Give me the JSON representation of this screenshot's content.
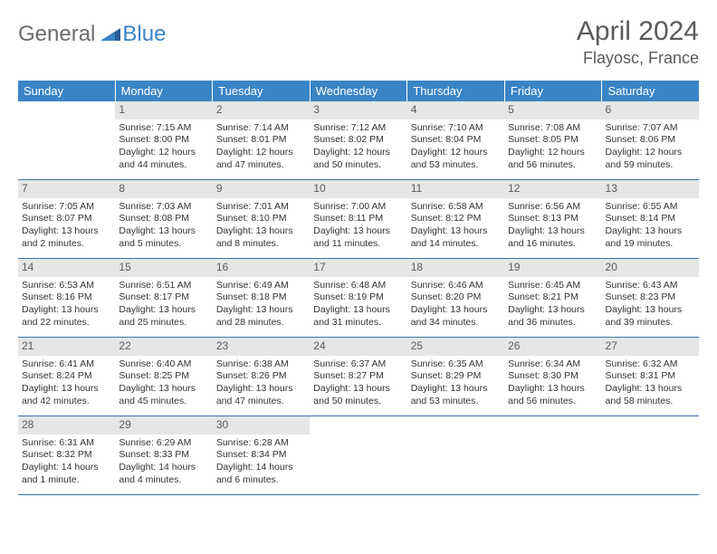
{
  "logo": {
    "general": "General",
    "blue": "Blue"
  },
  "title": "April 2024",
  "location": "Flayosc, France",
  "colors": {
    "header_bg": "#3a84c5",
    "header_text": "#ffffff",
    "daynum_bg": "#e6e6e6",
    "daynum_text": "#5a5a5a",
    "border": "#3a6fa5",
    "body_text": "#333333",
    "logo_gray": "#6c6c6c",
    "logo_blue": "#3a84c5"
  },
  "day_names": [
    "Sunday",
    "Monday",
    "Tuesday",
    "Wednesday",
    "Thursday",
    "Friday",
    "Saturday"
  ],
  "weeks": [
    [
      null,
      {
        "n": "1",
        "sunrise": "7:15 AM",
        "sunset": "8:00 PM",
        "day": "12 hours and 44 minutes."
      },
      {
        "n": "2",
        "sunrise": "7:14 AM",
        "sunset": "8:01 PM",
        "day": "12 hours and 47 minutes."
      },
      {
        "n": "3",
        "sunrise": "7:12 AM",
        "sunset": "8:02 PM",
        "day": "12 hours and 50 minutes."
      },
      {
        "n": "4",
        "sunrise": "7:10 AM",
        "sunset": "8:04 PM",
        "day": "12 hours and 53 minutes."
      },
      {
        "n": "5",
        "sunrise": "7:08 AM",
        "sunset": "8:05 PM",
        "day": "12 hours and 56 minutes."
      },
      {
        "n": "6",
        "sunrise": "7:07 AM",
        "sunset": "8:06 PM",
        "day": "12 hours and 59 minutes."
      }
    ],
    [
      {
        "n": "7",
        "sunrise": "7:05 AM",
        "sunset": "8:07 PM",
        "day": "13 hours and 2 minutes."
      },
      {
        "n": "8",
        "sunrise": "7:03 AM",
        "sunset": "8:08 PM",
        "day": "13 hours and 5 minutes."
      },
      {
        "n": "9",
        "sunrise": "7:01 AM",
        "sunset": "8:10 PM",
        "day": "13 hours and 8 minutes."
      },
      {
        "n": "10",
        "sunrise": "7:00 AM",
        "sunset": "8:11 PM",
        "day": "13 hours and 11 minutes."
      },
      {
        "n": "11",
        "sunrise": "6:58 AM",
        "sunset": "8:12 PM",
        "day": "13 hours and 14 minutes."
      },
      {
        "n": "12",
        "sunrise": "6:56 AM",
        "sunset": "8:13 PM",
        "day": "13 hours and 16 minutes."
      },
      {
        "n": "13",
        "sunrise": "6:55 AM",
        "sunset": "8:14 PM",
        "day": "13 hours and 19 minutes."
      }
    ],
    [
      {
        "n": "14",
        "sunrise": "6:53 AM",
        "sunset": "8:16 PM",
        "day": "13 hours and 22 minutes."
      },
      {
        "n": "15",
        "sunrise": "6:51 AM",
        "sunset": "8:17 PM",
        "day": "13 hours and 25 minutes."
      },
      {
        "n": "16",
        "sunrise": "6:49 AM",
        "sunset": "8:18 PM",
        "day": "13 hours and 28 minutes."
      },
      {
        "n": "17",
        "sunrise": "6:48 AM",
        "sunset": "8:19 PM",
        "day": "13 hours and 31 minutes."
      },
      {
        "n": "18",
        "sunrise": "6:46 AM",
        "sunset": "8:20 PM",
        "day": "13 hours and 34 minutes."
      },
      {
        "n": "19",
        "sunrise": "6:45 AM",
        "sunset": "8:21 PM",
        "day": "13 hours and 36 minutes."
      },
      {
        "n": "20",
        "sunrise": "6:43 AM",
        "sunset": "8:23 PM",
        "day": "13 hours and 39 minutes."
      }
    ],
    [
      {
        "n": "21",
        "sunrise": "6:41 AM",
        "sunset": "8:24 PM",
        "day": "13 hours and 42 minutes."
      },
      {
        "n": "22",
        "sunrise": "6:40 AM",
        "sunset": "8:25 PM",
        "day": "13 hours and 45 minutes."
      },
      {
        "n": "23",
        "sunrise": "6:38 AM",
        "sunset": "8:26 PM",
        "day": "13 hours and 47 minutes."
      },
      {
        "n": "24",
        "sunrise": "6:37 AM",
        "sunset": "8:27 PM",
        "day": "13 hours and 50 minutes."
      },
      {
        "n": "25",
        "sunrise": "6:35 AM",
        "sunset": "8:29 PM",
        "day": "13 hours and 53 minutes."
      },
      {
        "n": "26",
        "sunrise": "6:34 AM",
        "sunset": "8:30 PM",
        "day": "13 hours and 56 minutes."
      },
      {
        "n": "27",
        "sunrise": "6:32 AM",
        "sunset": "8:31 PM",
        "day": "13 hours and 58 minutes."
      }
    ],
    [
      {
        "n": "28",
        "sunrise": "6:31 AM",
        "sunset": "8:32 PM",
        "day": "14 hours and 1 minute."
      },
      {
        "n": "29",
        "sunrise": "6:29 AM",
        "sunset": "8:33 PM",
        "day": "14 hours and 4 minutes."
      },
      {
        "n": "30",
        "sunrise": "6:28 AM",
        "sunset": "8:34 PM",
        "day": "14 hours and 6 minutes."
      },
      null,
      null,
      null,
      null
    ]
  ],
  "labels": {
    "sunrise": "Sunrise:",
    "sunset": "Sunset:",
    "daylight": "Daylight:"
  }
}
